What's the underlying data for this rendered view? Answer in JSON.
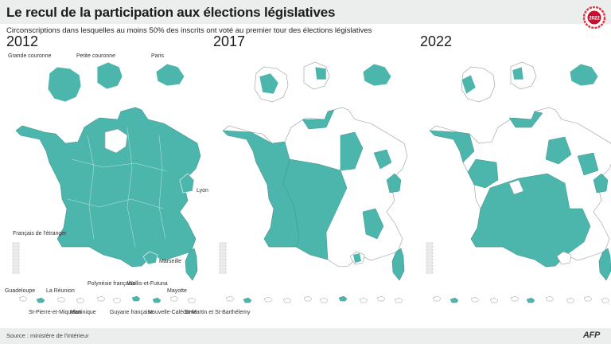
{
  "title": "Le recul de la participation aux élections législatives",
  "subtitle": "Circonscriptions dans lesquelles au moins 50% des inscrits ont voté au premier tour des élections législatives",
  "badge": {
    "label": "2022",
    "colors": {
      "ring": "#e5333a",
      "center": "#c8102e"
    }
  },
  "colors": {
    "highlight": "#4db6ac",
    "other": "#ffffff",
    "border": "#9a9a9a"
  },
  "years": [
    "2012",
    "2017",
    "2022"
  ],
  "inset_labels": {
    "grande_couronne": "Grande couronne",
    "petite_couronne": "Petite couronne",
    "paris": "Paris",
    "lyon": "Lyon",
    "marseille": "Marseille",
    "francais_etranger": "Français de l'étranger"
  },
  "overseas_labels": {
    "guadeloupe": "Guadeloupe",
    "st_pierre": "St-Pierre-et-Miquelon",
    "reunion": "La Réunion",
    "martinique": "Martinique",
    "polynesie": "Polynésie française",
    "guyane": "Guyane française",
    "wallis": "Wallis-et-Futuna",
    "caledonie": "Nouvelle-Calédonie",
    "mayotte": "Mayotte",
    "st_martin": "St-Martin et St-Barthélemy"
  },
  "coverage": {
    "2012": "most",
    "2017": "about half",
    "2022": "about half"
  },
  "source": "Source : ministère de l'Intérieur",
  "credit": "AFP"
}
